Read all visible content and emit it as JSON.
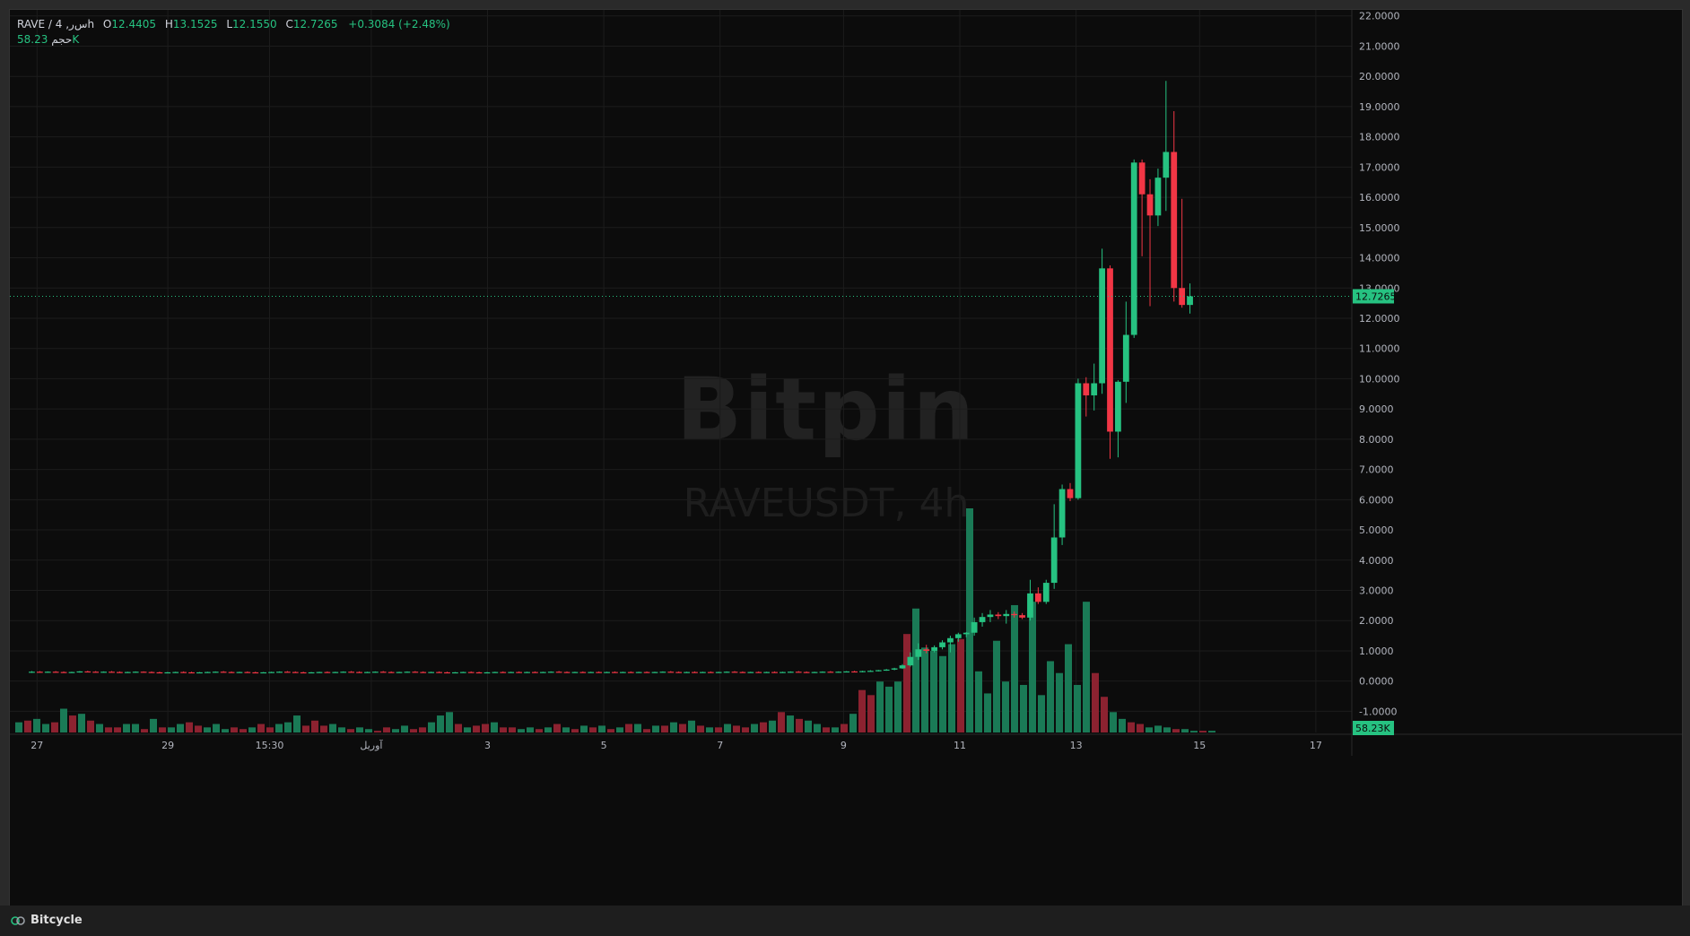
{
  "legend": {
    "symbol": "RAVE / 4 ,ﺱ‍ﺭh",
    "open_label": "O",
    "open": "12.4405",
    "high_label": "H",
    "high": "13.1525",
    "low_label": "L",
    "low": "12.1550",
    "close_label": "C",
    "close": "12.7265",
    "change": "+0.3084 (+2.48%)",
    "volume_label": "حجم",
    "volume": "58.23K"
  },
  "watermark": {
    "brand": "Bitpin",
    "symbol": "RAVEUSDT, 4h"
  },
  "footer": {
    "brand": "Bitcycle"
  },
  "colors": {
    "up": "#26c281",
    "down": "#f23645",
    "background": "#0c0c0c",
    "grid": "#1c1c1c",
    "text": "#d1d4dc"
  },
  "chart_data": {
    "type": "candlestick",
    "interval": "4h",
    "y_axis": {
      "ticks": [
        "22.0000",
        "21.0000",
        "20.0000",
        "19.0000",
        "18.0000",
        "17.0000",
        "16.0000",
        "15.0000",
        "14.0000",
        "13.0000",
        "12.0000",
        "11.0000",
        "10.0000",
        "9.0000",
        "8.0000",
        "7.0000",
        "6.0000",
        "5.0000",
        "4.0000",
        "3.0000",
        "2.0000",
        "1.0000",
        "0.0000",
        "-1.0000"
      ],
      "range": [
        -1.7,
        22.2
      ]
    },
    "x_axis": {
      "ticks": [
        "27",
        "29",
        "15:30",
        "آوریل",
        "3",
        "5",
        "7",
        "9",
        "11",
        "13",
        "15",
        "17"
      ]
    },
    "last_price": "12.7265",
    "last_volume": "58.23K",
    "candles": [
      {
        "o": 0.3,
        "h": 0.33,
        "l": 0.27,
        "c": 0.31
      },
      {
        "o": 0.31,
        "h": 0.33,
        "l": 0.28,
        "c": 0.3
      },
      {
        "o": 0.3,
        "h": 0.32,
        "l": 0.28,
        "c": 0.31
      },
      {
        "o": 0.31,
        "h": 0.33,
        "l": 0.29,
        "c": 0.3
      },
      {
        "o": 0.3,
        "h": 0.32,
        "l": 0.28,
        "c": 0.29
      },
      {
        "o": 0.29,
        "h": 0.31,
        "l": 0.27,
        "c": 0.3
      },
      {
        "o": 0.3,
        "h": 0.33,
        "l": 0.28,
        "c": 0.32
      },
      {
        "o": 0.32,
        "h": 0.34,
        "l": 0.3,
        "c": 0.31
      },
      {
        "o": 0.31,
        "h": 0.33,
        "l": 0.29,
        "c": 0.3
      },
      {
        "o": 0.3,
        "h": 0.32,
        "l": 0.28,
        "c": 0.31
      },
      {
        "o": 0.31,
        "h": 0.33,
        "l": 0.29,
        "c": 0.3
      },
      {
        "o": 0.3,
        "h": 0.32,
        "l": 0.28,
        "c": 0.29
      },
      {
        "o": 0.29,
        "h": 0.31,
        "l": 0.27,
        "c": 0.3
      },
      {
        "o": 0.3,
        "h": 0.32,
        "l": 0.28,
        "c": 0.31
      },
      {
        "o": 0.31,
        "h": 0.32,
        "l": 0.29,
        "c": 0.3
      },
      {
        "o": 0.3,
        "h": 0.32,
        "l": 0.28,
        "c": 0.29
      },
      {
        "o": 0.29,
        "h": 0.31,
        "l": 0.27,
        "c": 0.28
      },
      {
        "o": 0.28,
        "h": 0.3,
        "l": 0.26,
        "c": 0.29
      },
      {
        "o": 0.29,
        "h": 0.31,
        "l": 0.27,
        "c": 0.3
      },
      {
        "o": 0.3,
        "h": 0.32,
        "l": 0.28,
        "c": 0.29
      },
      {
        "o": 0.29,
        "h": 0.31,
        "l": 0.27,
        "c": 0.28
      },
      {
        "o": 0.28,
        "h": 0.3,
        "l": 0.26,
        "c": 0.29
      },
      {
        "o": 0.29,
        "h": 0.31,
        "l": 0.27,
        "c": 0.3
      },
      {
        "o": 0.3,
        "h": 0.32,
        "l": 0.28,
        "c": 0.31
      },
      {
        "o": 0.31,
        "h": 0.33,
        "l": 0.29,
        "c": 0.3
      },
      {
        "o": 0.3,
        "h": 0.32,
        "l": 0.28,
        "c": 0.29
      },
      {
        "o": 0.29,
        "h": 0.31,
        "l": 0.27,
        "c": 0.3
      },
      {
        "o": 0.3,
        "h": 0.32,
        "l": 0.28,
        "c": 0.29
      },
      {
        "o": 0.29,
        "h": 0.31,
        "l": 0.27,
        "c": 0.28
      },
      {
        "o": 0.28,
        "h": 0.3,
        "l": 0.26,
        "c": 0.29
      },
      {
        "o": 0.29,
        "h": 0.31,
        "l": 0.27,
        "c": 0.3
      },
      {
        "o": 0.3,
        "h": 0.32,
        "l": 0.28,
        "c": 0.31
      },
      {
        "o": 0.31,
        "h": 0.33,
        "l": 0.29,
        "c": 0.3
      },
      {
        "o": 0.3,
        "h": 0.32,
        "l": 0.28,
        "c": 0.29
      },
      {
        "o": 0.29,
        "h": 0.31,
        "l": 0.27,
        "c": 0.28
      },
      {
        "o": 0.28,
        "h": 0.3,
        "l": 0.26,
        "c": 0.29
      },
      {
        "o": 0.29,
        "h": 0.31,
        "l": 0.27,
        "c": 0.3
      },
      {
        "o": 0.3,
        "h": 0.32,
        "l": 0.28,
        "c": 0.29
      },
      {
        "o": 0.29,
        "h": 0.31,
        "l": 0.27,
        "c": 0.3
      },
      {
        "o": 0.3,
        "h": 0.32,
        "l": 0.28,
        "c": 0.31
      },
      {
        "o": 0.31,
        "h": 0.33,
        "l": 0.29,
        "c": 0.3
      },
      {
        "o": 0.3,
        "h": 0.32,
        "l": 0.28,
        "c": 0.29
      },
      {
        "o": 0.29,
        "h": 0.31,
        "l": 0.27,
        "c": 0.3
      },
      {
        "o": 0.3,
        "h": 0.32,
        "l": 0.28,
        "c": 0.31
      },
      {
        "o": 0.31,
        "h": 0.33,
        "l": 0.29,
        "c": 0.3
      },
      {
        "o": 0.3,
        "h": 0.32,
        "l": 0.28,
        "c": 0.29
      },
      {
        "o": 0.29,
        "h": 0.31,
        "l": 0.27,
        "c": 0.3
      },
      {
        "o": 0.3,
        "h": 0.32,
        "l": 0.28,
        "c": 0.31
      },
      {
        "o": 0.31,
        "h": 0.33,
        "l": 0.29,
        "c": 0.3
      },
      {
        "o": 0.3,
        "h": 0.32,
        "l": 0.28,
        "c": 0.29
      },
      {
        "o": 0.29,
        "h": 0.31,
        "l": 0.27,
        "c": 0.3
      },
      {
        "o": 0.3,
        "h": 0.32,
        "l": 0.28,
        "c": 0.29
      },
      {
        "o": 0.29,
        "h": 0.31,
        "l": 0.27,
        "c": 0.28
      },
      {
        "o": 0.28,
        "h": 0.3,
        "l": 0.26,
        "c": 0.29
      },
      {
        "o": 0.29,
        "h": 0.31,
        "l": 0.27,
        "c": 0.3
      },
      {
        "o": 0.3,
        "h": 0.32,
        "l": 0.28,
        "c": 0.29
      },
      {
        "o": 0.29,
        "h": 0.31,
        "l": 0.27,
        "c": 0.28
      },
      {
        "o": 0.28,
        "h": 0.3,
        "l": 0.26,
        "c": 0.29
      },
      {
        "o": 0.29,
        "h": 0.31,
        "l": 0.27,
        "c": 0.3
      },
      {
        "o": 0.3,
        "h": 0.32,
        "l": 0.28,
        "c": 0.29
      },
      {
        "o": 0.29,
        "h": 0.31,
        "l": 0.27,
        "c": 0.3
      },
      {
        "o": 0.3,
        "h": 0.32,
        "l": 0.28,
        "c": 0.29
      },
      {
        "o": 0.29,
        "h": 0.31,
        "l": 0.27,
        "c": 0.3
      },
      {
        "o": 0.3,
        "h": 0.32,
        "l": 0.28,
        "c": 0.29
      },
      {
        "o": 0.29,
        "h": 0.31,
        "l": 0.27,
        "c": 0.3
      },
      {
        "o": 0.3,
        "h": 0.32,
        "l": 0.28,
        "c": 0.31
      },
      {
        "o": 0.31,
        "h": 0.33,
        "l": 0.29,
        "c": 0.3
      },
      {
        "o": 0.3,
        "h": 0.32,
        "l": 0.28,
        "c": 0.29
      },
      {
        "o": 0.29,
        "h": 0.31,
        "l": 0.27,
        "c": 0.3
      },
      {
        "o": 0.3,
        "h": 0.32,
        "l": 0.28,
        "c": 0.29
      },
      {
        "o": 0.29,
        "h": 0.31,
        "l": 0.27,
        "c": 0.3
      },
      {
        "o": 0.3,
        "h": 0.32,
        "l": 0.28,
        "c": 0.29
      },
      {
        "o": 0.29,
        "h": 0.31,
        "l": 0.27,
        "c": 0.3
      },
      {
        "o": 0.3,
        "h": 0.32,
        "l": 0.28,
        "c": 0.29
      },
      {
        "o": 0.29,
        "h": 0.31,
        "l": 0.27,
        "c": 0.3
      },
      {
        "o": 0.3,
        "h": 0.32,
        "l": 0.28,
        "c": 0.29
      },
      {
        "o": 0.29,
        "h": 0.31,
        "l": 0.27,
        "c": 0.3
      },
      {
        "o": 0.3,
        "h": 0.32,
        "l": 0.28,
        "c": 0.29
      },
      {
        "o": 0.29,
        "h": 0.31,
        "l": 0.27,
        "c": 0.3
      },
      {
        "o": 0.3,
        "h": 0.32,
        "l": 0.28,
        "c": 0.31
      },
      {
        "o": 0.31,
        "h": 0.33,
        "l": 0.29,
        "c": 0.3
      },
      {
        "o": 0.3,
        "h": 0.32,
        "l": 0.28,
        "c": 0.29
      },
      {
        "o": 0.29,
        "h": 0.31,
        "l": 0.27,
        "c": 0.3
      },
      {
        "o": 0.3,
        "h": 0.32,
        "l": 0.28,
        "c": 0.29
      },
      {
        "o": 0.29,
        "h": 0.31,
        "l": 0.27,
        "c": 0.3
      },
      {
        "o": 0.3,
        "h": 0.32,
        "l": 0.28,
        "c": 0.29
      },
      {
        "o": 0.29,
        "h": 0.31,
        "l": 0.27,
        "c": 0.3
      },
      {
        "o": 0.3,
        "h": 0.32,
        "l": 0.28,
        "c": 0.31
      },
      {
        "o": 0.31,
        "h": 0.33,
        "l": 0.29,
        "c": 0.3
      },
      {
        "o": 0.3,
        "h": 0.32,
        "l": 0.28,
        "c": 0.29
      },
      {
        "o": 0.29,
        "h": 0.31,
        "l": 0.27,
        "c": 0.3
      },
      {
        "o": 0.3,
        "h": 0.32,
        "l": 0.28,
        "c": 0.29
      },
      {
        "o": 0.29,
        "h": 0.31,
        "l": 0.27,
        "c": 0.3
      },
      {
        "o": 0.3,
        "h": 0.32,
        "l": 0.28,
        "c": 0.29
      },
      {
        "o": 0.29,
        "h": 0.31,
        "l": 0.27,
        "c": 0.3
      },
      {
        "o": 0.3,
        "h": 0.32,
        "l": 0.28,
        "c": 0.31
      },
      {
        "o": 0.31,
        "h": 0.33,
        "l": 0.29,
        "c": 0.3
      },
      {
        "o": 0.3,
        "h": 0.32,
        "l": 0.28,
        "c": 0.29
      },
      {
        "o": 0.29,
        "h": 0.31,
        "l": 0.27,
        "c": 0.3
      },
      {
        "o": 0.3,
        "h": 0.32,
        "l": 0.28,
        "c": 0.31
      },
      {
        "o": 0.31,
        "h": 0.33,
        "l": 0.29,
        "c": 0.3
      },
      {
        "o": 0.3,
        "h": 0.32,
        "l": 0.28,
        "c": 0.31
      },
      {
        "o": 0.31,
        "h": 0.33,
        "l": 0.29,
        "c": 0.32
      },
      {
        "o": 0.32,
        "h": 0.34,
        "l": 0.3,
        "c": 0.31
      },
      {
        "o": 0.31,
        "h": 0.34,
        "l": 0.29,
        "c": 0.33
      },
      {
        "o": 0.33,
        "h": 0.36,
        "l": 0.31,
        "c": 0.34
      },
      {
        "o": 0.34,
        "h": 0.37,
        "l": 0.32,
        "c": 0.36
      },
      {
        "o": 0.36,
        "h": 0.4,
        "l": 0.34,
        "c": 0.38
      },
      {
        "o": 0.38,
        "h": 0.44,
        "l": 0.36,
        "c": 0.42
      },
      {
        "o": 0.42,
        "h": 0.56,
        "l": 0.4,
        "c": 0.52
      },
      {
        "o": 0.52,
        "h": 0.95,
        "l": 0.48,
        "c": 0.8
      },
      {
        "o": 0.8,
        "h": 1.25,
        "l": 0.7,
        "c": 1.05
      },
      {
        "o": 1.05,
        "h": 1.2,
        "l": 0.92,
        "c": 1.0
      },
      {
        "o": 1.0,
        "h": 1.18,
        "l": 0.95,
        "c": 1.12
      },
      {
        "o": 1.12,
        "h": 1.35,
        "l": 1.05,
        "c": 1.28
      },
      {
        "o": 1.28,
        "h": 1.5,
        "l": 0.95,
        "c": 1.42
      },
      {
        "o": 1.42,
        "h": 1.6,
        "l": 1.3,
        "c": 1.55
      },
      {
        "o": 1.55,
        "h": 1.62,
        "l": 1.45,
        "c": 1.6
      },
      {
        "o": 1.6,
        "h": 2.1,
        "l": 1.5,
        "c": 1.95
      },
      {
        "o": 1.95,
        "h": 2.25,
        "l": 1.8,
        "c": 2.12
      },
      {
        "o": 2.12,
        "h": 2.35,
        "l": 1.95,
        "c": 2.2
      },
      {
        "o": 2.2,
        "h": 2.28,
        "l": 2.05,
        "c": 2.15
      },
      {
        "o": 2.15,
        "h": 2.35,
        "l": 1.9,
        "c": 2.22
      },
      {
        "o": 2.22,
        "h": 2.3,
        "l": 2.1,
        "c": 2.18
      },
      {
        "o": 2.18,
        "h": 2.25,
        "l": 2.05,
        "c": 2.1
      },
      {
        "o": 2.1,
        "h": 3.35,
        "l": 2.0,
        "c": 2.9
      },
      {
        "o": 2.9,
        "h": 3.1,
        "l": 2.55,
        "c": 2.62
      },
      {
        "o": 2.62,
        "h": 3.35,
        "l": 2.55,
        "c": 3.25
      },
      {
        "o": 3.25,
        "h": 5.85,
        "l": 3.05,
        "c": 4.75
      },
      {
        "o": 4.75,
        "h": 6.5,
        "l": 4.5,
        "c": 6.35
      },
      {
        "o": 6.35,
        "h": 6.55,
        "l": 5.95,
        "c": 6.05
      },
      {
        "o": 6.05,
        "h": 10.0,
        "l": 6.0,
        "c": 9.85
      },
      {
        "o": 9.85,
        "h": 10.05,
        "l": 8.75,
        "c": 9.45
      },
      {
        "o": 9.45,
        "h": 10.5,
        "l": 8.95,
        "c": 9.85
      },
      {
        "o": 9.85,
        "h": 14.3,
        "l": 9.5,
        "c": 13.65
      },
      {
        "o": 13.65,
        "h": 13.75,
        "l": 7.35,
        "c": 8.25
      },
      {
        "o": 8.25,
        "h": 9.95,
        "l": 7.4,
        "c": 9.9
      },
      {
        "o": 9.9,
        "h": 12.55,
        "l": 9.2,
        "c": 11.45
      },
      {
        "o": 11.45,
        "h": 17.25,
        "l": 11.35,
        "c": 17.15
      },
      {
        "o": 17.15,
        "h": 17.25,
        "l": 14.05,
        "c": 16.1
      },
      {
        "o": 16.1,
        "h": 16.6,
        "l": 12.4,
        "c": 15.4
      },
      {
        "o": 15.4,
        "h": 16.95,
        "l": 15.05,
        "c": 16.65
      },
      {
        "o": 16.65,
        "h": 19.85,
        "l": 15.55,
        "c": 17.5
      },
      {
        "o": 17.5,
        "h": 18.85,
        "l": 12.55,
        "c": 13.0
      },
      {
        "o": 13.0,
        "h": 15.95,
        "l": 12.35,
        "c": 12.44
      },
      {
        "o": 12.4405,
        "h": 13.1525,
        "l": 12.155,
        "c": 12.7265
      }
    ],
    "volume": [
      6,
      7,
      8,
      5,
      6,
      14,
      10,
      11,
      7,
      5,
      3,
      3,
      5,
      5,
      2,
      8,
      3,
      3,
      5,
      6,
      4,
      3,
      5,
      2,
      3,
      2,
      3,
      5,
      3,
      5,
      6,
      10,
      4,
      7,
      4,
      5,
      3,
      2,
      3,
      2,
      1,
      3,
      2,
      4,
      2,
      3,
      6,
      10,
      12,
      5,
      3,
      4,
      5,
      6,
      3,
      3,
      2,
      3,
      2,
      3,
      5,
      3,
      2,
      4,
      3,
      4,
      2,
      3,
      5,
      5,
      2,
      4,
      4,
      6,
      5,
      7,
      4,
      3,
      3,
      5,
      4,
      3,
      5,
      6,
      7,
      12,
      10,
      8,
      7,
      5,
      3,
      3,
      5,
      11,
      25,
      22,
      30,
      27,
      30,
      58,
      73,
      50,
      48,
      45,
      52,
      55,
      132,
      36,
      23,
      54,
      30,
      75,
      28,
      77,
      22,
      42,
      35,
      52,
      28,
      77,
      35,
      21,
      12,
      8,
      6,
      5,
      3,
      4,
      3,
      2,
      2,
      1,
      1,
      1
    ],
    "volume_up": [
      true,
      false,
      true,
      true,
      false,
      true,
      false,
      true,
      false,
      true,
      false,
      false,
      true,
      true,
      false,
      true,
      false,
      true,
      true,
      false,
      false,
      true,
      true,
      true,
      false,
      false,
      true,
      false,
      false,
      true,
      true,
      true,
      false,
      false,
      false,
      true,
      true,
      false,
      true,
      true,
      false,
      false,
      true,
      true,
      false,
      false,
      true,
      true,
      true,
      false,
      true,
      false,
      false,
      true,
      false,
      false,
      true,
      true,
      false,
      true,
      false,
      true,
      false,
      true,
      false,
      true,
      false,
      true,
      false,
      true,
      false,
      true,
      false,
      true,
      false,
      true,
      false,
      true,
      false,
      true,
      false,
      false,
      true,
      false,
      true,
      false,
      true,
      false,
      true,
      true,
      false,
      true,
      false,
      true,
      false,
      false,
      true,
      true,
      true,
      false,
      true,
      true,
      true,
      true,
      true,
      false,
      true,
      true,
      true,
      true,
      true,
      true,
      true,
      true,
      true,
      true,
      true,
      true,
      true,
      true,
      false,
      false,
      true,
      true,
      false,
      false,
      true,
      true
    ]
  }
}
